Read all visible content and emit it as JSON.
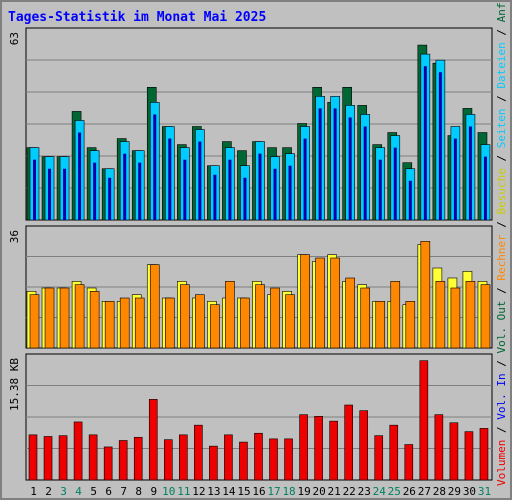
{
  "title": "Tages-Statistik im Monat Mai 2025",
  "colors": {
    "title": "#0000ff",
    "anfragen": "#006633",
    "dateien": "#00ccff",
    "seiten": "#0000aa",
    "besuche": "#ffff33",
    "rechner": "#ff8800",
    "volumen": "#ee0000",
    "weekday": "#000000",
    "weekend": "#00805f"
  },
  "legend_right": {
    "upper": [
      "Anfragen",
      "/",
      "Dateien",
      "/",
      "Seiten",
      "/",
      "Besuche",
      "/",
      "Rechner",
      "/",
      "Vol. Out",
      "/",
      "Vol. In",
      "/",
      "Volumen"
    ],
    "upper_colors": [
      "anfragen",
      "sep",
      "dateien",
      "sep",
      "dateien",
      "sep",
      "besuche",
      "sep",
      "rechner",
      "sep",
      "sep",
      "sep",
      "seiten",
      "sep",
      "volumen"
    ]
  },
  "chart_data": [
    {
      "type": "bar",
      "name": "hits",
      "ymax_label": "63",
      "ylim": [
        0,
        63
      ],
      "x": [
        "1",
        "2",
        "3",
        "4",
        "5",
        "6",
        "7",
        "8",
        "9",
        "10",
        "11",
        "12",
        "13",
        "14",
        "15",
        "16",
        "17",
        "18",
        "19",
        "20",
        "21",
        "22",
        "23",
        "24",
        "25",
        "26",
        "27",
        "28",
        "29",
        "30",
        "31"
      ],
      "series": [
        {
          "name": "Anfragen",
          "values": [
            24,
            21,
            21,
            36,
            24,
            17,
            27,
            23,
            44,
            31,
            25,
            31,
            18,
            26,
            23,
            26,
            24,
            24,
            32,
            44,
            39,
            44,
            38,
            25,
            29,
            19,
            58,
            52,
            28,
            37,
            29
          ]
        },
        {
          "name": "Dateien",
          "values": [
            24,
            21,
            21,
            33,
            23,
            17,
            26,
            23,
            39,
            31,
            24,
            30,
            18,
            24,
            18,
            26,
            21,
            22,
            31,
            41,
            41,
            38,
            35,
            24,
            28,
            17,
            55,
            53,
            31,
            35,
            25
          ]
        },
        {
          "name": "Seiten",
          "values": [
            20,
            17,
            17,
            29,
            19,
            14,
            22,
            19,
            35,
            27,
            20,
            26,
            15,
            20,
            14,
            22,
            17,
            18,
            27,
            37,
            37,
            34,
            31,
            20,
            24,
            13,
            51,
            49,
            27,
            31,
            21
          ]
        }
      ]
    },
    {
      "type": "bar",
      "name": "visits",
      "ymax_label": "36",
      "ylim": [
        0,
        36
      ],
      "series": [
        {
          "name": "Besuche",
          "values": [
            17,
            18,
            18,
            20,
            18,
            14,
            14,
            16,
            25,
            15,
            20,
            15,
            14,
            15,
            15,
            20,
            16,
            17,
            28,
            26,
            28,
            20,
            19,
            14,
            14,
            13,
            31,
            24,
            21,
            23,
            20
          ]
        },
        {
          "name": "Rechner",
          "values": [
            16,
            18,
            18,
            19,
            17,
            14,
            15,
            15,
            25,
            15,
            19,
            16,
            13,
            20,
            15,
            19,
            18,
            16,
            28,
            27,
            27,
            21,
            18,
            14,
            20,
            14,
            32,
            20,
            18,
            20,
            19
          ]
        }
      ]
    },
    {
      "type": "bar",
      "name": "volume",
      "ymax_label": "15.38 KB",
      "ylim": [
        0,
        15.38
      ],
      "series": [
        {
          "name": "Volumen",
          "values": [
            5.6,
            5.4,
            5.5,
            7.2,
            5.6,
            4.1,
            4.9,
            5.3,
            10.0,
            5.0,
            5.6,
            6.8,
            4.2,
            5.6,
            4.7,
            5.8,
            5.1,
            5.1,
            8.1,
            7.9,
            7.3,
            9.3,
            8.6,
            5.5,
            6.8,
            4.4,
            14.8,
            8.1,
            7.1,
            6.0,
            6.4
          ]
        }
      ]
    }
  ]
}
